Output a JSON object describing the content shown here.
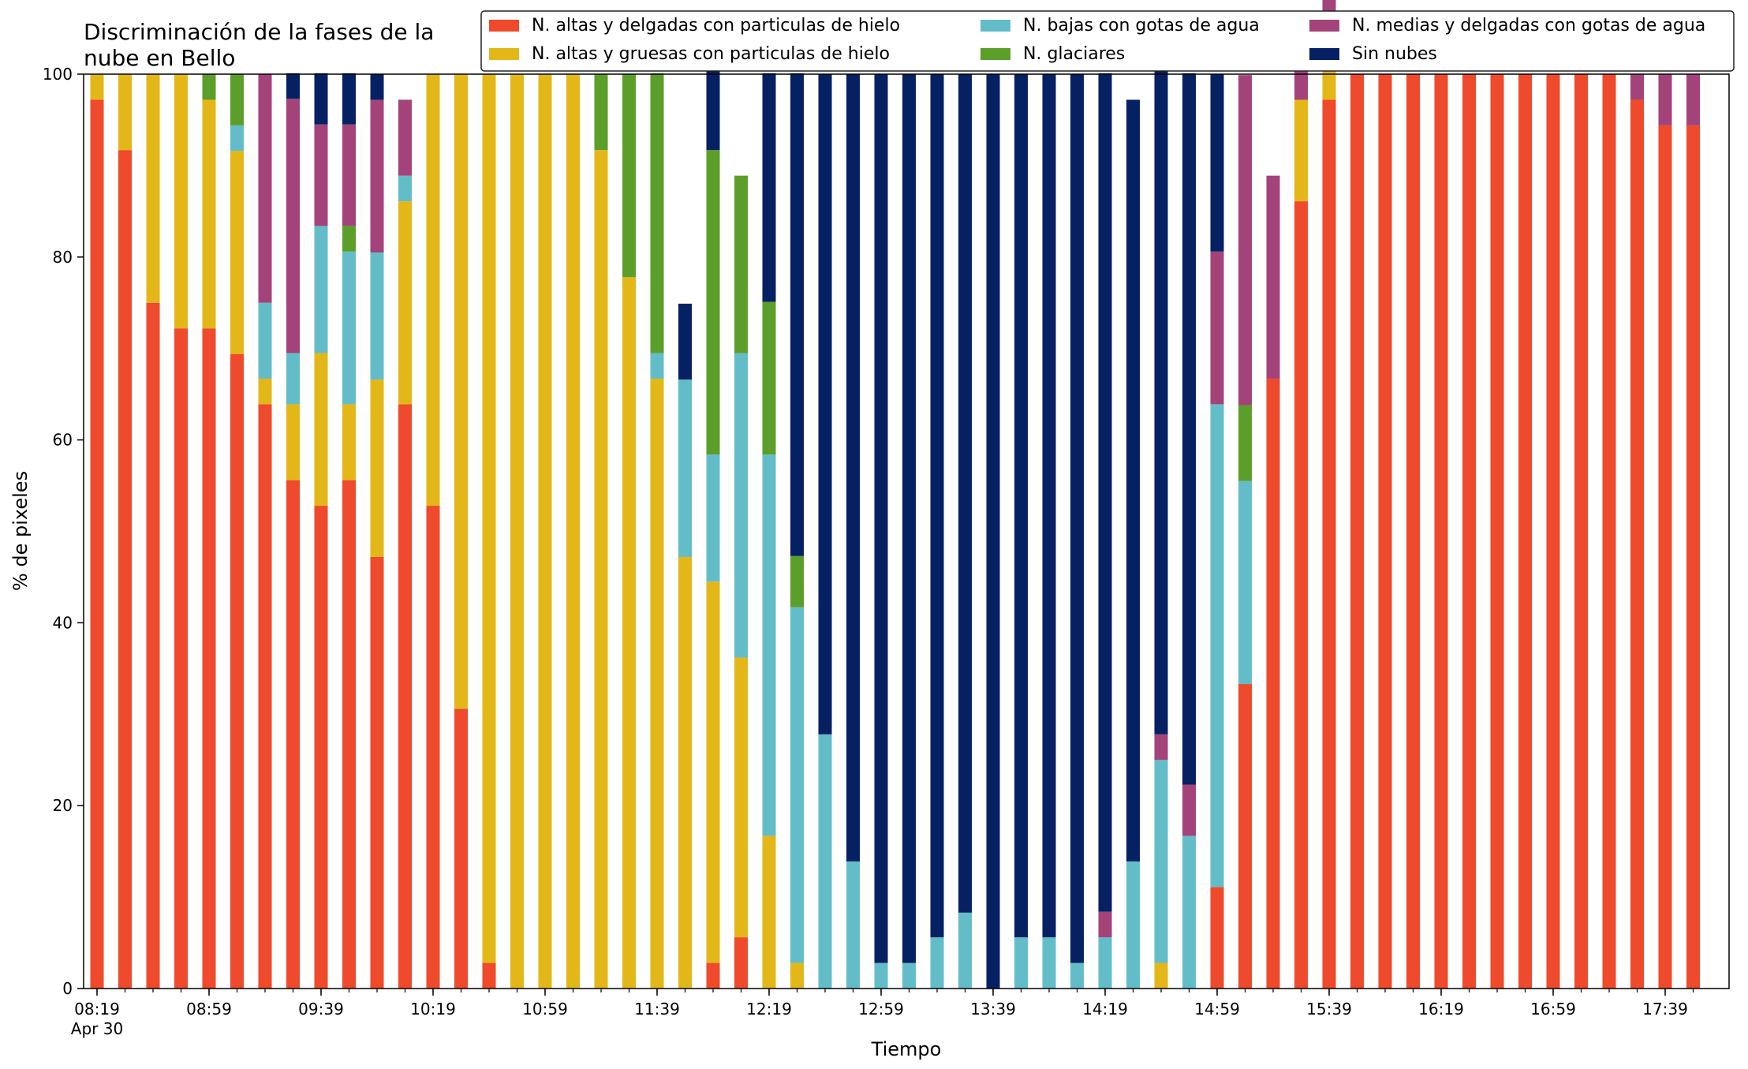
{
  "chart_data": {
    "type": "bar",
    "stacked": true,
    "title_lines": [
      "Discriminación de la fases de la",
      "nube en Bello"
    ],
    "xlabel": "Tiempo",
    "ylabel": "% de pixeles",
    "ylim": [
      0,
      100
    ],
    "yticks": [
      0,
      20,
      40,
      60,
      80,
      100
    ],
    "xtick_labels": [
      {
        "index": 0,
        "label": "08:19",
        "sublabel": "Apr 30"
      },
      {
        "index": 4,
        "label": "08:59"
      },
      {
        "index": 8,
        "label": "09:39"
      },
      {
        "index": 12,
        "label": "10:19"
      },
      {
        "index": 16,
        "label": "10:59"
      },
      {
        "index": 20,
        "label": "11:39"
      },
      {
        "index": 24,
        "label": "12:19"
      },
      {
        "index": 28,
        "label": "12:59"
      },
      {
        "index": 32,
        "label": "13:39"
      },
      {
        "index": 36,
        "label": "14:19"
      },
      {
        "index": 40,
        "label": "14:59"
      },
      {
        "index": 44,
        "label": "15:39"
      },
      {
        "index": 48,
        "label": "16:19"
      },
      {
        "index": 52,
        "label": "16:59"
      },
      {
        "index": 56,
        "label": "17:39"
      }
    ],
    "categories": [
      "08:19",
      "08:29",
      "08:39",
      "08:49",
      "08:59",
      "09:09",
      "09:19",
      "09:29",
      "09:39",
      "09:49",
      "09:59",
      "10:09",
      "10:19",
      "10:29",
      "10:39",
      "10:49",
      "10:59",
      "11:09",
      "11:19",
      "11:29",
      "11:39",
      "11:49",
      "11:59",
      "12:09",
      "12:19",
      "12:29",
      "12:39",
      "12:49",
      "12:59",
      "13:09",
      "13:19",
      "13:29",
      "13:39",
      "13:49",
      "13:59",
      "14:09",
      "14:19",
      "14:29",
      "14:39",
      "14:49",
      "14:59",
      "15:09",
      "15:19",
      "15:29",
      "15:39",
      "15:49",
      "15:59",
      "16:09",
      "16:19",
      "16:29",
      "16:39",
      "16:49",
      "16:59",
      "17:09",
      "17:19",
      "17:29",
      "17:39",
      "17:49"
    ],
    "legend": {
      "placement": "top-right",
      "columns": 3
    },
    "grid": false,
    "series": [
      {
        "name": "N. altas y delgadas con particulas de hielo",
        "color": "#ee4a2b",
        "values": [
          97.2,
          91.7,
          75,
          72.2,
          72.2,
          69.4,
          63.9,
          55.6,
          52.8,
          55.6,
          47.2,
          63.9,
          52.8,
          30.6,
          2.8,
          0,
          0,
          0,
          0,
          0,
          0,
          0,
          2.8,
          5.6,
          0,
          0,
          0,
          0,
          0,
          0,
          0,
          0,
          0,
          0,
          0,
          0,
          0,
          0,
          0,
          0,
          11.1,
          33.3,
          66.7,
          86.1,
          97.2,
          100,
          100,
          100,
          100,
          100,
          100,
          100,
          100,
          100,
          100,
          97.2,
          94.4,
          94.4
        ]
      },
      {
        "name": "N. altas y gruesas con particulas de hielo",
        "color": "#e3b718",
        "values": [
          2.8,
          8.3,
          25,
          27.8,
          25,
          22.2,
          2.8,
          8.3,
          16.7,
          8.3,
          19.4,
          22.2,
          47.2,
          69.4,
          97.2,
          100,
          100,
          100,
          91.7,
          77.8,
          66.7,
          47.2,
          41.7,
          30.6,
          16.7,
          2.8,
          0,
          0,
          0,
          0,
          0,
          0,
          0,
          0,
          0,
          0,
          0,
          0,
          2.8,
          0,
          0,
          0,
          0,
          11.1,
          8.3,
          0,
          0,
          0,
          0,
          0,
          0,
          0,
          0,
          0,
          0,
          0,
          0,
          0
        ]
      },
      {
        "name": "N. bajas con gotas de agua",
        "color": "#63bdc9",
        "values": [
          0,
          0,
          0,
          0,
          0,
          2.8,
          8.3,
          5.6,
          13.9,
          16.7,
          13.9,
          2.8,
          0,
          0,
          0,
          0,
          0,
          0,
          0,
          0,
          2.8,
          19.4,
          13.9,
          33.3,
          41.7,
          38.9,
          27.8,
          13.9,
          2.8,
          2.8,
          5.6,
          8.3,
          0,
          5.6,
          5.6,
          2.8,
          5.6,
          13.9,
          22.2,
          16.7,
          52.8,
          22.2,
          0,
          0,
          0,
          0,
          0,
          0,
          0,
          0,
          0,
          0,
          0,
          0,
          0,
          0,
          0,
          0
        ]
      },
      {
        "name": "N. glaciares",
        "color": "#5c9e2a",
        "values": [
          0,
          0,
          0,
          0,
          2.8,
          5.6,
          0,
          0,
          0,
          2.8,
          0,
          0,
          0,
          0,
          0,
          0,
          0,
          0,
          8.3,
          22.2,
          30.6,
          0,
          33.3,
          19.4,
          16.7,
          5.6,
          0,
          0,
          0,
          0,
          0,
          0,
          0,
          0,
          0,
          0,
          0,
          0,
          0,
          0,
          0,
          8.3,
          0,
          0,
          0,
          0,
          0,
          0,
          0,
          0,
          0,
          0,
          0,
          0,
          0,
          0,
          0,
          0
        ]
      },
      {
        "name": "N. medias y delgadas con gotas de agua",
        "color": "#a3437a",
        "values": [
          0,
          0,
          0,
          0,
          0,
          0,
          25,
          27.8,
          11.1,
          11.1,
          16.7,
          8.3,
          0,
          0,
          0,
          0,
          0,
          0,
          0,
          0,
          0,
          0,
          0,
          0,
          0,
          0,
          0,
          0,
          0,
          0,
          0,
          0,
          0,
          0,
          0,
          0,
          2.8,
          0,
          2.8,
          5.6,
          16.7,
          36.1,
          22.2,
          5.6,
          2.8,
          0,
          0,
          0,
          0,
          0,
          0,
          0,
          0,
          0,
          0,
          2.8,
          5.6,
          5.6
        ]
      },
      {
        "name": "Sin nubes",
        "color": "#052163",
        "values": [
          0,
          0,
          0,
          0,
          0,
          0,
          0,
          2.8,
          5.6,
          5.6,
          2.8,
          0,
          0,
          0,
          0,
          0,
          0,
          0,
          0,
          0,
          0,
          8.3,
          11.1,
          0,
          25,
          52.8,
          72.2,
          86.1,
          97.2,
          97.2,
          94.4,
          91.7,
          100,
          94.4,
          94.4,
          97.2,
          91.7,
          83.3,
          75,
          77.8,
          19.4,
          0,
          0,
          0,
          0,
          0,
          0,
          0,
          0,
          0,
          0,
          0,
          0,
          0,
          0,
          0,
          0,
          0
        ]
      }
    ]
  }
}
